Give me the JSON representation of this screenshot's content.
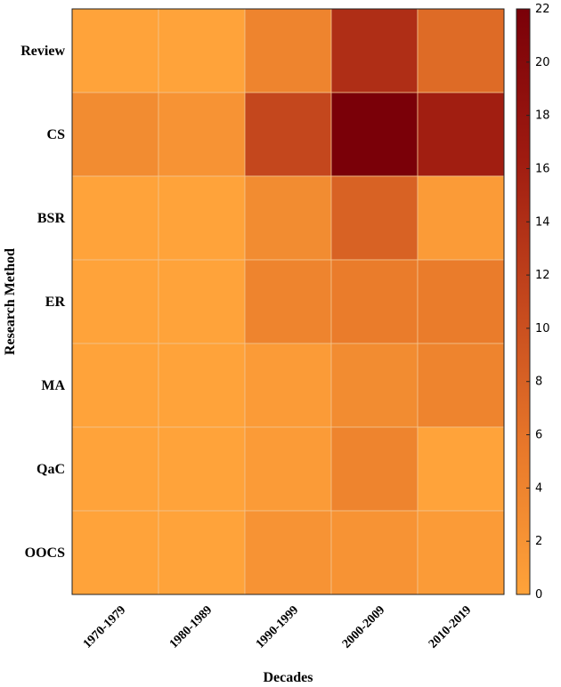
{
  "chart_data": {
    "type": "heatmap",
    "xlabel": "Decades",
    "ylabel": "Research Method",
    "columns": [
      "1970-1979",
      "1980-1989",
      "1990-1999",
      "2000-2009",
      "2010-2019"
    ],
    "rows": [
      "Review",
      "CS",
      "BSR",
      "ER",
      "MA",
      "QaC",
      "OOCS"
    ],
    "values": [
      [
        0,
        0,
        4,
        14,
        7
      ],
      [
        3,
        2,
        11,
        22,
        16
      ],
      [
        0,
        0,
        3,
        8,
        1
      ],
      [
        0,
        0,
        4,
        5,
        5
      ],
      [
        0,
        0,
        1,
        3,
        4
      ],
      [
        0,
        0,
        1,
        4,
        0
      ],
      [
        0,
        0,
        2,
        2,
        1
      ]
    ],
    "colorbar": {
      "min": 0,
      "max": 22,
      "ticks": [
        0,
        2,
        4,
        6,
        8,
        10,
        12,
        14,
        16,
        18,
        20,
        22
      ],
      "colors": [
        "#ffa33a",
        "#e8782a",
        "#c4471d",
        "#9e1a10",
        "#7a0008"
      ]
    }
  }
}
